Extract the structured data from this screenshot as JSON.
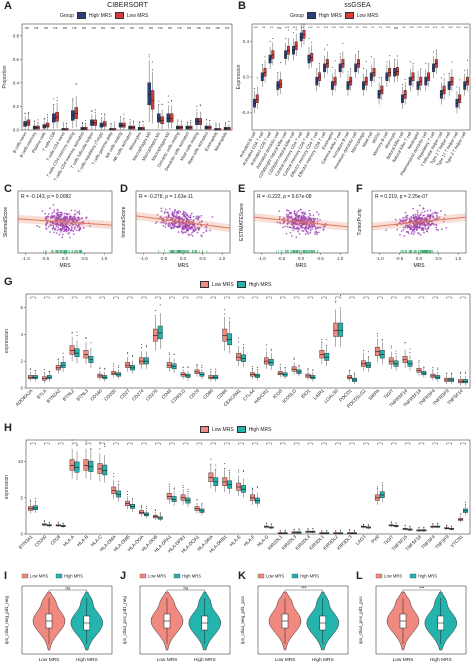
{
  "colors": {
    "high_mrs": "#2a3f7a",
    "low_mrs": "#d63a3a",
    "scatter": "#9b3fb5",
    "fit": "#e07a5a",
    "rug": "#21a05a",
    "g_low": "#f08a80",
    "g_high": "#24b3ad"
  },
  "panels": {
    "A": {
      "label": "A",
      "title": "CIBERSORT",
      "legend_title": "Group",
      "legend_items": [
        "High MRS",
        "Low MRS"
      ],
      "ylabel": "Proportion",
      "sig": [
        "ns",
        "ns",
        "ns",
        "ns",
        "ns",
        "ns",
        "ns",
        "ns",
        "ns",
        "ns",
        "ns",
        "ns",
        "ns",
        "ns",
        "ns",
        "ns",
        "ns",
        "ns",
        "ns",
        "ns",
        "ns",
        "ns"
      ],
      "categories": [
        "B cells naive",
        "B cells memory",
        "Plasma cells",
        "T cells CD8",
        "T cells CD4 naive",
        "T cells CD4 memory resting",
        "T cells CD4 memory activated",
        "T cells follicular helper",
        "T cells regulatory (Tregs)",
        "T cells gamma delta",
        "NK cells resting",
        "NK cells activated",
        "Monocytes",
        "Macrophages M0",
        "Macrophages M1",
        "Macrophages M2",
        "Dendritic cells resting",
        "Dendritic cells activated",
        "Mast cells resting",
        "Mast cells activated",
        "Eosinophils",
        "Neutrophils"
      ],
      "yticks": [
        "0.0",
        "0.2",
        "0.4",
        "0.6",
        "0.8"
      ]
    },
    "B": {
      "label": "B",
      "title": "ssGSEA",
      "legend_title": "Group",
      "legend_items": [
        "High MRS",
        "Low MRS"
      ],
      "ylabel": "Expression",
      "sig": [
        "***",
        "**",
        "**",
        "ns",
        "***",
        "***",
        "**",
        "***",
        "**",
        "***",
        "***",
        "***",
        "***",
        "**",
        "***",
        "**",
        "**",
        "***",
        "ns",
        "**",
        "***",
        "***",
        "***",
        "***",
        "**",
        "***",
        "***",
        "***"
      ],
      "categories": [
        "Activated B cell",
        "Activated CD4 T cell",
        "Activated CD8 T cell",
        "Activated dendritic cell",
        "CD56bright natural killer cell",
        "CD56dim natural killer cell",
        "Central memory CD4 T cell",
        "Central memory CD8 T cell",
        "Effector memory CD4 T cell",
        "Effector memory CD8 T cell",
        "Eosinophil",
        "Gamma delta T cell",
        "Immature B cell",
        "Immature dendritic cell",
        "Macrophage",
        "Mast cell",
        "MDSC",
        "Memory B cell",
        "Monocyte",
        "Natural killer cell",
        "Natural killer T cell",
        "Neutrophil",
        "Plasmacytoid dendritic cell",
        "Regulatory T cell",
        "T follicular helper cell",
        "Type 1 T helper cell",
        "Type 17 T helper cell",
        "Type 2 T helper cell"
      ],
      "yticks": [
        "-0.4",
        "0.0",
        "0.4"
      ]
    },
    "C": {
      "label": "C",
      "annot": "R = -0.143, p = 0.0082",
      "ylabel": "StromalScore",
      "xlabel": "MRS",
      "xticks": [
        "-1.0",
        "-0.5",
        "0.0",
        "0.5",
        "1.0"
      ]
    },
    "D": {
      "label": "D",
      "annot": "R = -0.278, p = 1.63e-11",
      "ylabel": "ImmuneScore",
      "xlabel": "MRS",
      "xticks": [
        "-1.0",
        "-0.5",
        "0.0",
        "0.5",
        "1.0"
      ]
    },
    "E": {
      "label": "E",
      "annot": "R = -0.222, p = 9.67e-08",
      "ylabel": "ESTIMATEScore",
      "xlabel": "MRS",
      "xticks": [
        "-1.0",
        "-0.5",
        "0.0",
        "0.5",
        "1.0"
      ]
    },
    "F": {
      "label": "F",
      "annot": "R = 0.219, p = 2.25e-07",
      "ylabel": "TumorPurity",
      "xlabel": "MRS",
      "xticks": [
        "-1.0",
        "-0.5",
        "0.0",
        "0.5",
        "1.0"
      ]
    },
    "G": {
      "label": "G",
      "legend_items": [
        "Low MRS",
        "High MRS"
      ],
      "ylabel": "expression",
      "yticks": [
        "0",
        "2",
        "4",
        "6"
      ],
      "categories": [
        "ADORA2A",
        "BTLA",
        "BTN2A2",
        "BTNL2",
        "BTNL3",
        "CD160",
        "CD200",
        "CD27",
        "CD274",
        "CD276",
        "CD40",
        "CD40LG",
        "CD70",
        "CD80",
        "CD86",
        "CEACAM1",
        "CTLA4",
        "HAVCR2",
        "ICOS",
        "ICOSLG",
        "IDO1",
        "LAIR1",
        "LGALS9",
        "PDCD1",
        "PDCD1LG2",
        "SIRPA",
        "TIGIT",
        "TNFRSF14",
        "TNFRSF18",
        "TNFRSF4",
        "TNFRSF9",
        "TNFSF14"
      ]
    },
    "H": {
      "label": "H",
      "legend_items": [
        "Low MRS",
        "High MRS"
      ],
      "ylabel": "expression",
      "yticks": [
        "0",
        "5",
        "10"
      ],
      "categories": [
        "BTN3A1",
        "CD200",
        "CD28",
        "HLA-A",
        "HLA-B",
        "HLA-C",
        "HLA-DMA",
        "HLA-DMB",
        "HLA-DOA",
        "HLA-DOB",
        "HLA-DPA1",
        "HLA-DPB1",
        "HLA-DQA1",
        "HLA-DRA",
        "HLA-DRB1",
        "HLA-E",
        "HLA-F",
        "HLA-G",
        "KIR2DL1",
        "KIR2DL3",
        "KIR2DL4",
        "KIR3DL1",
        "KIR3DL2",
        "KIR3DL3",
        "LAG3",
        "PVR",
        "TIGIT",
        "TNFSF15",
        "TNFSF18",
        "TNFSF4",
        "TNFSF9",
        "VTCN1"
      ]
    },
    "I": {
      "label": "I",
      "legend_items": [
        "Low MRS",
        "High MRS"
      ],
      "ylabel": "ips_ctla4_neg_pd1_neg",
      "sig": "ns",
      "xcats": [
        "Low MRS",
        "High MRS"
      ]
    },
    "J": {
      "label": "J",
      "legend_items": [
        "Low MRS",
        "High MRS"
      ],
      "ylabel": "ips_ctla4_pos_pd1_neg",
      "sig": "ns",
      "xcats": [
        "Low MRS",
        "High MRS"
      ]
    },
    "K": {
      "label": "K",
      "legend_items": [
        "Low MRS",
        "High MRS"
      ],
      "ylabel": "ips_ctla4_neg_pd1_pos",
      "sig": "***",
      "xcats": [
        "Low MRS",
        "High MRS"
      ]
    },
    "L": {
      "label": "L",
      "legend_items": [
        "Low MRS",
        "High MRS"
      ],
      "ylabel": "ips_ctla4_pos_pd1_pos",
      "sig": "***",
      "xcats": [
        "Low MRS",
        "High MRS"
      ]
    }
  },
  "chart_data": [
    {
      "type": "box",
      "panel": "A",
      "title": "CIBERSORT",
      "ylabel": "Proportion",
      "ylim": [
        0,
        0.9
      ],
      "categories": [
        "B cells naive",
        "B cells memory",
        "Plasma cells",
        "T cells CD8",
        "T cells CD4 naive",
        "T cells CD4 memory resting",
        "T cells CD4 memory activated",
        "T cells follicular helper",
        "T cells regulatory (Tregs)",
        "T cells gamma delta",
        "NK cells resting",
        "NK cells activated",
        "Monocytes",
        "Macrophages M0",
        "Macrophages M1",
        "Macrophages M2",
        "Dendritic cells resting",
        "Dendritic cells activated",
        "Mast cells resting",
        "Mast cells activated",
        "Eosinophils",
        "Neutrophils"
      ],
      "series": [
        {
          "name": "High MRS",
          "median": [
            0.05,
            0.02,
            0.03,
            0.1,
            0.0,
            0.12,
            0.01,
            0.06,
            0.04,
            0.0,
            0.04,
            0.02,
            0.01,
            0.3,
            0.1,
            0.1,
            0.02,
            0.02,
            0.07,
            0.02,
            0.0,
            0.01
          ]
        },
        {
          "name": "Low MRS",
          "median": [
            0.06,
            0.02,
            0.04,
            0.11,
            0.0,
            0.14,
            0.01,
            0.06,
            0.05,
            0.0,
            0.04,
            0.02,
            0.01,
            0.25,
            0.08,
            0.1,
            0.02,
            0.02,
            0.07,
            0.02,
            0.0,
            0.01
          ]
        }
      ]
    },
    {
      "type": "box",
      "panel": "B",
      "title": "ssGSEA",
      "ylabel": "Expression",
      "ylim": [
        -0.6,
        0.6
      ],
      "series": [
        {
          "name": "High MRS",
          "median": [
            -0.3,
            0.0,
            0.2,
            -0.1,
            0.25,
            0.3,
            0.45,
            0.2,
            -0.05,
            0.1,
            -0.1,
            0.1,
            -0.1,
            0.1,
            -0.1,
            0.0,
            -0.2,
            0.0,
            0.05,
            -0.25,
            -0.05,
            -0.1,
            -0.05,
            0.1,
            -0.2,
            -0.1,
            -0.3,
            -0.1
          ]
        },
        {
          "name": "Low MRS",
          "median": [
            -0.25,
            0.05,
            0.25,
            -0.08,
            0.3,
            0.35,
            0.48,
            0.22,
            0.0,
            0.15,
            -0.05,
            0.15,
            -0.05,
            0.15,
            -0.05,
            0.05,
            -0.15,
            0.05,
            0.06,
            -0.2,
            0.0,
            -0.05,
            0.0,
            0.15,
            -0.15,
            -0.05,
            -0.25,
            -0.05
          ]
        }
      ]
    },
    {
      "type": "scatter",
      "panel": "C",
      "xlabel": "MRS",
      "ylabel": "StromalScore",
      "xlim": [
        -1.2,
        1.2
      ],
      "R": -0.143,
      "p": "0.0082"
    },
    {
      "type": "scatter",
      "panel": "D",
      "xlabel": "MRS",
      "ylabel": "ImmuneScore",
      "xlim": [
        -1.2,
        1.2
      ],
      "R": -0.278,
      "p": "1.63e-11"
    },
    {
      "type": "scatter",
      "panel": "E",
      "xlabel": "MRS",
      "ylabel": "ESTIMATEScore",
      "xlim": [
        -1.2,
        1.2
      ],
      "R": -0.222,
      "p": "9.67e-08"
    },
    {
      "type": "scatter",
      "panel": "F",
      "xlabel": "MRS",
      "ylabel": "TumorPurity",
      "xlim": [
        -1.2,
        1.2
      ],
      "R": 0.219,
      "p": "2.25e-07"
    },
    {
      "type": "box",
      "panel": "G",
      "ylabel": "expression",
      "ylim": [
        0,
        7
      ],
      "series": [
        {
          "name": "Low MRS",
          "median": [
            0.8,
            0.7,
            1.5,
            2.8,
            2.5,
            0.9,
            1.1,
            1.7,
            2.0,
            3.9,
            1.7,
            1.0,
            1.2,
            0.8,
            3.9,
            2.3,
            1.0,
            2.0,
            1.1,
            1.4,
            0.9,
            2.5,
            4.3,
            0.8,
            1.8,
            2.7,
            2.0,
            2.1,
            1.3,
            0.9,
            0.6,
            0.5
          ]
        },
        {
          "name": "High MRS",
          "median": [
            0.8,
            0.8,
            1.7,
            2.6,
            2.1,
            0.8,
            1.0,
            1.5,
            2.0,
            4.1,
            1.6,
            0.9,
            1.0,
            0.8,
            3.6,
            2.2,
            0.9,
            1.9,
            1.0,
            1.2,
            0.8,
            2.3,
            4.3,
            0.6,
            1.7,
            2.5,
            1.8,
            1.8,
            1.1,
            0.8,
            0.6,
            0.5
          ]
        }
      ]
    },
    {
      "type": "box",
      "panel": "H",
      "ylabel": "expression",
      "ylim": [
        0,
        13
      ],
      "series": [
        {
          "name": "Low MRS",
          "median": [
            3.5,
            1.3,
            1.2,
            9.5,
            9.5,
            9.0,
            6.0,
            4.2,
            3.0,
            2.4,
            5.2,
            5.0,
            3.5,
            7.8,
            7.2,
            6.5,
            5.0,
            1.0,
            0.1,
            0.2,
            0.3,
            0.1,
            0.1,
            0.1,
            1.0,
            5.0,
            1.2,
            0.7,
            0.5,
            1.0,
            0.8,
            2.0
          ]
        },
        {
          "name": "High MRS",
          "median": [
            3.6,
            1.2,
            1.1,
            9.2,
            9.3,
            8.8,
            5.5,
            3.8,
            2.7,
            2.2,
            4.8,
            4.6,
            3.2,
            7.2,
            6.8,
            6.2,
            4.6,
            0.9,
            0.1,
            0.2,
            0.3,
            0.1,
            0.1,
            0.1,
            0.9,
            5.4,
            1.1,
            0.6,
            0.5,
            1.0,
            0.7,
            3.2
          ]
        }
      ]
    },
    {
      "type": "violin",
      "panel": "I",
      "ylabel": "ips_ctla4_neg_pd1_neg",
      "categories": [
        "Low MRS",
        "High MRS"
      ],
      "sig": "ns"
    },
    {
      "type": "violin",
      "panel": "J",
      "ylabel": "ips_ctla4_pos_pd1_neg",
      "categories": [
        "Low MRS",
        "High MRS"
      ],
      "sig": "ns"
    },
    {
      "type": "violin",
      "panel": "K",
      "ylabel": "ips_ctla4_neg_pd1_pos",
      "categories": [
        "Low MRS",
        "High MRS"
      ],
      "sig": "***"
    },
    {
      "type": "violin",
      "panel": "L",
      "ylabel": "ips_ctla4_pos_pd1_pos",
      "categories": [
        "Low MRS",
        "High MRS"
      ],
      "sig": "***"
    }
  ]
}
